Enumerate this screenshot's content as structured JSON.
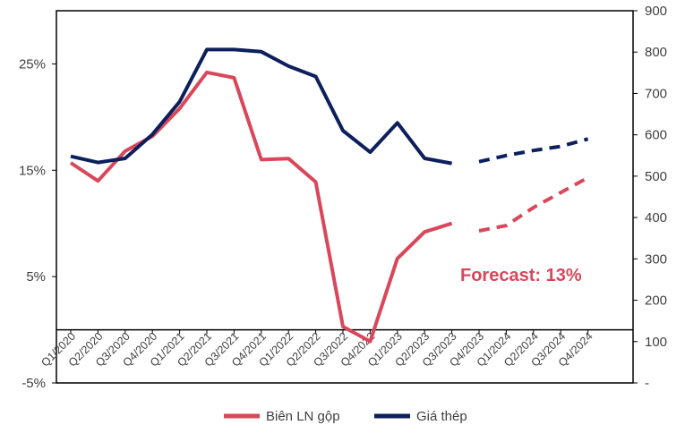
{
  "colors": {
    "margin": "#D9475B",
    "steel": "#0D1F5C",
    "frame": "#000000",
    "text": "#404040"
  },
  "chart_data": {
    "type": "line",
    "categories": [
      "Q1/2020",
      "Q2/2020",
      "Q3/2020",
      "Q4/2020",
      "Q1/2021",
      "Q2/2021",
      "Q3/2021",
      "Q4/2021",
      "Q1/2022",
      "Q2/2022",
      "Q3/2022",
      "Q4/2022",
      "Q1/2023",
      "Q2/2023",
      "Q3/2023",
      "Q4/2023",
      "Q1/2024",
      "Q2/2024",
      "Q3/2024",
      "Q4/2024"
    ],
    "y_left": {
      "ticks": [
        "-5%",
        "5%",
        "15%",
        "25%"
      ],
      "tick_values": [
        -5,
        5,
        15,
        25
      ],
      "range": [
        -5,
        30
      ]
    },
    "y_right": {
      "ticks": [
        "-",
        "100",
        "200",
        "300",
        "400",
        "500",
        "600",
        "700",
        "800",
        "900"
      ],
      "tick_values": [
        0,
        100,
        200,
        300,
        400,
        500,
        600,
        700,
        800,
        900
      ],
      "range": [
        0,
        900
      ]
    },
    "series": [
      {
        "name": "Biên LN gộp",
        "axis": "left",
        "color": "#D9475B",
        "values": [
          15.7,
          14.0,
          16.8,
          18.2,
          20.8,
          24.2,
          23.7,
          16.0,
          16.1,
          13.9,
          0.3,
          -1.1,
          6.7,
          9.2,
          10.0,
          9.3,
          9.8,
          11.5,
          12.9,
          14.3
        ],
        "forecast_from_index": 15
      },
      {
        "name": "Giá thép",
        "axis": "right",
        "color": "#0D1F5C",
        "values": [
          548,
          533,
          543,
          601,
          680,
          806,
          806,
          801,
          766,
          741,
          610,
          558,
          629,
          543,
          531,
          535,
          550,
          562,
          572,
          590
        ],
        "forecast_from_index": 15
      }
    ],
    "annotation": {
      "text": "Forecast: 13%",
      "color": "#D9475B"
    },
    "legend": {
      "position": "bottom"
    }
  }
}
